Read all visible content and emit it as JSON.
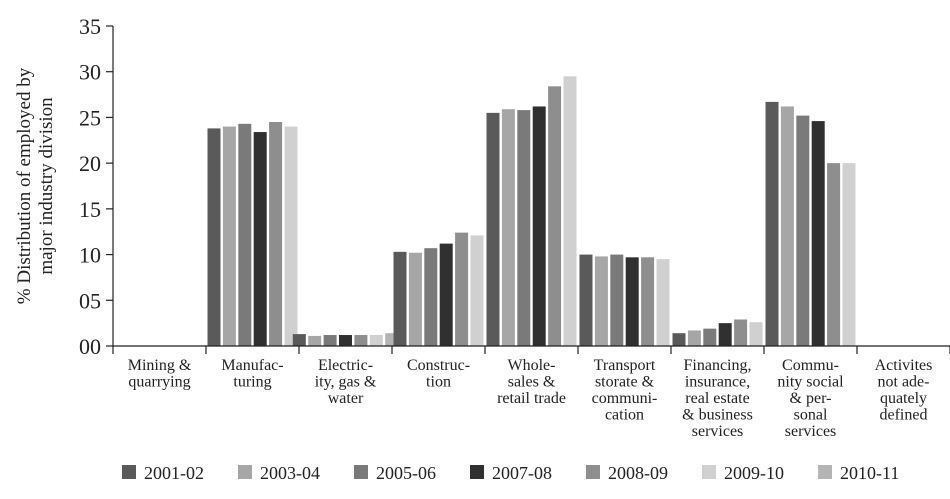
{
  "chart_data": {
    "type": "bar",
    "title": "",
    "ylabel_lines": [
      "% Distribution of employed by",
      "major industry division"
    ],
    "ylim": [
      0,
      35
    ],
    "yticks": [
      {
        "value": 35,
        "label": "35"
      },
      {
        "value": 30,
        "label": "30"
      },
      {
        "value": 25,
        "label": "25"
      },
      {
        "value": 20,
        "label": "20"
      },
      {
        "value": 15,
        "label": "15"
      },
      {
        "value": 10,
        "label": "10"
      },
      {
        "value": 5,
        "label": "05"
      },
      {
        "value": 0,
        "label": "00"
      }
    ],
    "categories": [
      [
        "Mining &",
        "quarrying"
      ],
      [
        "Manufac-",
        "turing"
      ],
      [
        "Electric-",
        "ity, gas &",
        "water"
      ],
      [
        "Construc-",
        "tion"
      ],
      [
        "Whole-",
        "sales &",
        "retail trade"
      ],
      [
        "Transport",
        "storate &",
        "communi-",
        "cation"
      ],
      [
        "Financing,",
        "insurance,",
        "real estate",
        "& business",
        "services"
      ],
      [
        "Commu-",
        "nity social",
        "& per-",
        "sonal",
        "services"
      ],
      [
        "Activites",
        "not ade-",
        "quately",
        "defined"
      ]
    ],
    "series": [
      {
        "name": "2001-02",
        "color": "#5a5a5a",
        "values": [
          0,
          23.8,
          1.3,
          10.3,
          25.5,
          10.0,
          1.4,
          26.7,
          0
        ]
      },
      {
        "name": "2003-04",
        "color": "#a6a6a6",
        "values": [
          0,
          24.0,
          1.1,
          10.2,
          25.9,
          9.8,
          1.7,
          26.2,
          0
        ]
      },
      {
        "name": "2005-06",
        "color": "#7a7a7a",
        "values": [
          0,
          24.3,
          1.2,
          10.7,
          25.8,
          10.0,
          1.9,
          25.2,
          0
        ]
      },
      {
        "name": "2007-08",
        "color": "#303030",
        "values": [
          0,
          23.4,
          1.2,
          11.2,
          26.2,
          9.7,
          2.5,
          24.6,
          0
        ]
      },
      {
        "name": "2008-09",
        "color": "#8e8e8e",
        "values": [
          0,
          24.5,
          1.2,
          12.4,
          28.4,
          9.7,
          2.9,
          20.0,
          0
        ]
      },
      {
        "name": "2009-10",
        "color": "#d0d0d0",
        "values": [
          0,
          24.0,
          1.2,
          12.1,
          29.5,
          9.5,
          2.6,
          20.0,
          0
        ]
      },
      {
        "name": "2010-11",
        "color": "#b4b4b4",
        "values": [
          0,
          0,
          1.4,
          0,
          0,
          0,
          0,
          0,
          0
        ]
      }
    ],
    "grid": false,
    "legend_position": "bottom"
  }
}
